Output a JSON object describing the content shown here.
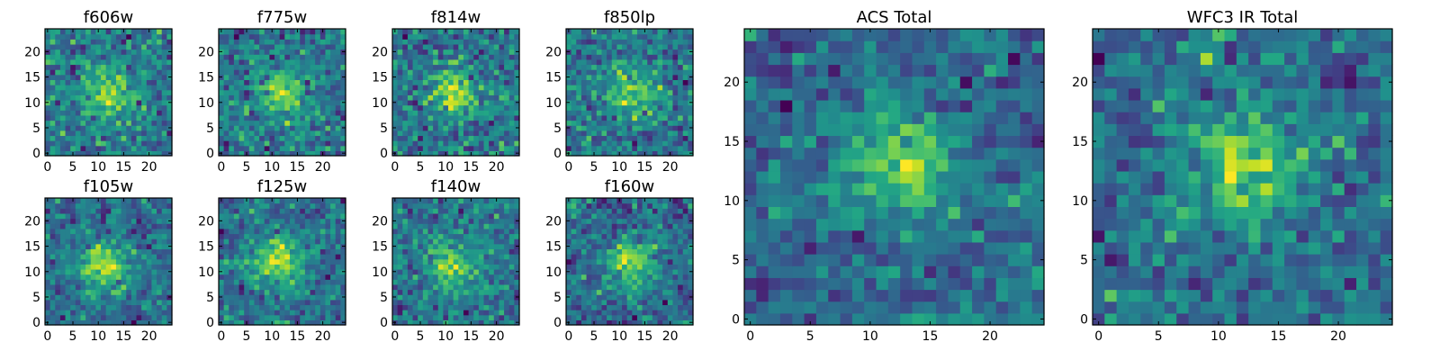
{
  "chart_data": [
    {
      "type": "heatmap",
      "title": "f606w",
      "x_ticks": [
        "0",
        "5",
        "10",
        "15",
        "20"
      ],
      "y_ticks": [
        "0",
        "5",
        "10",
        "15",
        "20"
      ],
      "grid_size": 25,
      "xlim": [
        0,
        25
      ],
      "ylim": [
        0,
        25
      ],
      "colormap": "viridis",
      "source_peak": [
        12,
        12
      ],
      "noise": 0.55,
      "seed": 11
    },
    {
      "type": "heatmap",
      "title": "f775w",
      "x_ticks": [
        "0",
        "5",
        "10",
        "15",
        "20"
      ],
      "y_ticks": [
        "0",
        "5",
        "10",
        "15",
        "20"
      ],
      "grid_size": 25,
      "xlim": [
        0,
        25
      ],
      "ylim": [
        0,
        25
      ],
      "colormap": "viridis",
      "source_peak": [
        12,
        12
      ],
      "noise": 0.55,
      "seed": 23
    },
    {
      "type": "heatmap",
      "title": "f814w",
      "x_ticks": [
        "0",
        "5",
        "10",
        "15",
        "20"
      ],
      "y_ticks": [
        "0",
        "5",
        "10",
        "15",
        "20"
      ],
      "grid_size": 25,
      "xlim": [
        0,
        25
      ],
      "ylim": [
        0,
        25
      ],
      "colormap": "viridis",
      "source_peak": [
        12,
        12
      ],
      "noise": 0.6,
      "seed": 37
    },
    {
      "type": "heatmap",
      "title": "f850lp",
      "x_ticks": [
        "0",
        "5",
        "10",
        "15",
        "20"
      ],
      "y_ticks": [
        "0",
        "5",
        "10",
        "15",
        "20"
      ],
      "grid_size": 25,
      "xlim": [
        0,
        25
      ],
      "ylim": [
        0,
        25
      ],
      "colormap": "viridis",
      "source_peak": [
        13,
        12
      ],
      "noise": 0.6,
      "seed": 41
    },
    {
      "type": "heatmap",
      "title": "f105w",
      "x_ticks": [
        "0",
        "5",
        "10",
        "15",
        "20"
      ],
      "y_ticks": [
        "0",
        "5",
        "10",
        "15",
        "20"
      ],
      "grid_size": 25,
      "xlim": [
        0,
        25
      ],
      "ylim": [
        0,
        25
      ],
      "colormap": "viridis",
      "source_peak": [
        11,
        11
      ],
      "noise": 0.45,
      "seed": 53
    },
    {
      "type": "heatmap",
      "title": "f125w",
      "x_ticks": [
        "0",
        "5",
        "10",
        "15",
        "20"
      ],
      "y_ticks": [
        "0",
        "5",
        "10",
        "15",
        "20"
      ],
      "grid_size": 25,
      "xlim": [
        0,
        25
      ],
      "ylim": [
        0,
        25
      ],
      "colormap": "viridis",
      "source_peak": [
        11,
        12
      ],
      "noise": 0.45,
      "seed": 67
    },
    {
      "type": "heatmap",
      "title": "f140w",
      "x_ticks": [
        "0",
        "5",
        "10",
        "15",
        "20"
      ],
      "y_ticks": [
        "0",
        "5",
        "10",
        "15",
        "20"
      ],
      "grid_size": 25,
      "xlim": [
        0,
        25
      ],
      "ylim": [
        0,
        25
      ],
      "colormap": "viridis",
      "source_peak": [
        11,
        11
      ],
      "noise": 0.5,
      "seed": 79
    },
    {
      "type": "heatmap",
      "title": "f160w",
      "x_ticks": [
        "0",
        "5",
        "10",
        "15",
        "20"
      ],
      "y_ticks": [
        "0",
        "5",
        "10",
        "15",
        "20"
      ],
      "grid_size": 25,
      "xlim": [
        0,
        25
      ],
      "ylim": [
        0,
        25
      ],
      "colormap": "viridis",
      "source_peak": [
        12,
        12
      ],
      "noise": 0.45,
      "seed": 83
    },
    {
      "type": "heatmap",
      "title": "ACS Total",
      "x_ticks": [
        "0",
        "5",
        "10",
        "15",
        "20"
      ],
      "y_ticks": [
        "0",
        "5",
        "10",
        "15",
        "20"
      ],
      "grid_size": 25,
      "xlim": [
        0,
        25
      ],
      "ylim": [
        0,
        25
      ],
      "colormap": "viridis",
      "source_peak": [
        13,
        13
      ],
      "noise": 0.4,
      "seed": 97
    },
    {
      "type": "heatmap",
      "title": "WFC3 IR Total",
      "x_ticks": [
        "0",
        "5",
        "10",
        "15",
        "20"
      ],
      "y_ticks": [
        "0",
        "5",
        "10",
        "15",
        "20"
      ],
      "grid_size": 25,
      "xlim": [
        0,
        25
      ],
      "ylim": [
        0,
        25
      ],
      "colormap": "viridis",
      "source_peak": [
        12,
        13
      ],
      "noise": 0.35,
      "seed": 101
    }
  ]
}
